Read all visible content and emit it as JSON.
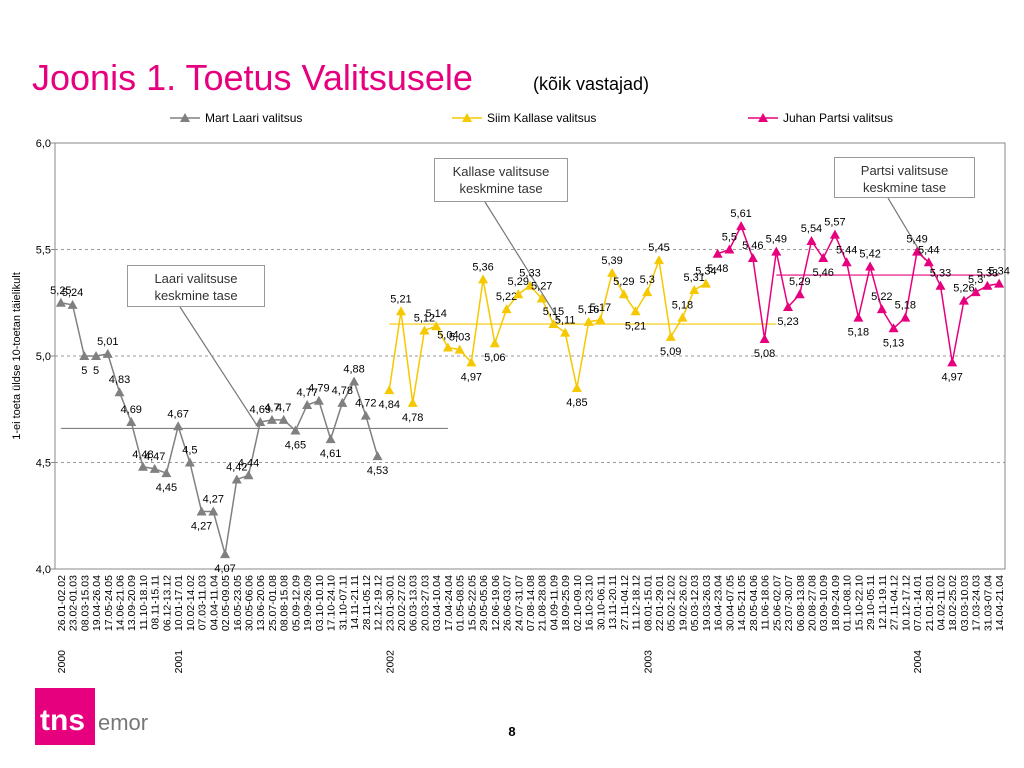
{
  "title": "Joonis 1. Toetus Valitsusele",
  "subtitle": "(kõik vastajad)",
  "page_number": "8",
  "logo": {
    "brand": "tns",
    "sub": "emor"
  },
  "chart_data": {
    "type": "line",
    "y_label": "1-ei toeta üldse  10-toetan täielikult",
    "categories": [
      "26.01-02.02",
      "23.02-01.03",
      "08.03-15.03",
      "19.04-26.04",
      "17.05-24.05",
      "14.06-21.06",
      "13.09-20.09",
      "11.10-18.10",
      "08.11-15.11",
      "06.12-13.12",
      "10.01-17.01",
      "10.02-14.02",
      "07.03-11.03",
      "04.04-11.04",
      "02.05-09.05",
      "16.05-23.05",
      "30.05-06.06",
      "13.06-20.06",
      "25.07-01.08",
      "08.08-15.08",
      "05.09-12.09",
      "19.09-26.09",
      "03.10-10.10",
      "17.10-24.10",
      "31.10-07.11",
      "14.11-21.11",
      "28.11-05.12",
      "12.12-19.12",
      "23.01-30.01",
      "20.02-27.02",
      "06.03-13.03",
      "20.03-27.03",
      "03.04-10.04",
      "17.04-24.04",
      "01.05-08.05",
      "15.05-22.05",
      "29.05-05.06",
      "12.06-19.06",
      "26.06-03.07",
      "24.07-31.07",
      "07.08-14.08",
      "21.08-28.08",
      "04.09-11.09",
      "18.09-25.09",
      "02.10-09.10",
      "16.10-23.10",
      "30.10-06.11",
      "13.11-20.11",
      "27.11-04.12",
      "11.12-18.12",
      "08.01-15.01",
      "22.01-29.01",
      "05.02-12.02",
      "19.02-26.02",
      "05.03-12.03",
      "19.03-26.03",
      "16.04-23.04",
      "30.04-07.05",
      "14.05-21.05",
      "28.05-04.06",
      "11.06-18.06",
      "25.06-02.07",
      "23.07-30.07",
      "06.08-13.08",
      "20.08-27.08",
      "03.09-10.09",
      "18.09-24.09",
      "01.10-08.10",
      "15.10-22.10",
      "29.10-05.11",
      "12.11-19.11",
      "27.11-04.12",
      "10.12-17.12",
      "07.01-14.01",
      "21.01-28.01",
      "04.02-11.02",
      "18.02-25.02",
      "03.03-10.03",
      "17.03-24.03",
      "31.03-07.04",
      "14.04-21.04"
    ],
    "years": [
      "2000",
      null,
      null,
      null,
      null,
      null,
      null,
      null,
      null,
      null,
      "2001",
      null,
      null,
      null,
      null,
      null,
      null,
      null,
      null,
      null,
      null,
      null,
      null,
      null,
      null,
      null,
      null,
      null,
      "2002",
      null,
      null,
      null,
      null,
      null,
      null,
      null,
      null,
      null,
      null,
      null,
      null,
      null,
      null,
      null,
      null,
      null,
      null,
      null,
      null,
      null,
      "2003",
      null,
      null,
      null,
      null,
      null,
      null,
      null,
      null,
      null,
      null,
      null,
      null,
      null,
      null,
      null,
      null,
      null,
      null,
      null,
      null,
      null,
      null,
      "2004",
      null,
      null,
      null,
      null,
      null,
      null,
      null
    ],
    "ylim": [
      4.0,
      6.0
    ],
    "yticks": [
      {
        "value": 4.0,
        "label": "4,0"
      },
      {
        "value": 4.5,
        "label": "4,5"
      },
      {
        "value": 5.0,
        "label": "5,0"
      },
      {
        "value": 5.5,
        "label": "5,5"
      },
      {
        "value": 6.0,
        "label": "6,0"
      }
    ],
    "grid": true,
    "series": [
      {
        "name": "Mart Laari valitsus",
        "color": "#808080",
        "values": [
          5.25,
          5.24,
          5,
          5,
          5.01,
          4.83,
          4.69,
          4.48,
          4.47,
          4.45,
          4.67,
          4.5,
          4.27,
          4.27,
          4.07,
          4.42,
          4.44,
          4.69,
          4.7,
          4.7,
          4.65,
          4.77,
          4.79,
          4.61,
          4.78,
          4.88,
          4.72,
          4.53,
          null,
          null,
          null,
          null,
          null,
          null,
          null,
          null,
          null,
          null,
          null,
          null,
          null,
          null,
          null,
          null,
          null,
          null,
          null,
          null,
          null,
          null,
          null,
          null,
          null,
          null,
          null,
          null,
          null,
          null,
          null,
          null,
          null,
          null,
          null,
          null,
          null,
          null,
          null,
          null,
          null,
          null,
          null,
          null,
          null,
          null,
          null,
          null,
          null,
          null,
          null,
          null,
          null
        ],
        "value_labels": [
          "5,25",
          "5,24",
          "5",
          "5",
          "5,01",
          "4,83",
          "4,69",
          "4,48",
          "4,47",
          "4,45",
          "4,67",
          "4,5",
          "4,27",
          "4,27",
          "4,07",
          "4,42",
          "4,44",
          "4,69",
          "4,7",
          "4,7",
          "4,65",
          "4,77",
          "4,79",
          "4,61",
          "4,78",
          "4,88",
          "4,72",
          "4,53",
          null,
          null,
          null,
          null,
          null,
          null,
          null,
          null,
          null,
          null,
          null,
          null,
          null,
          null,
          null,
          null,
          null,
          null,
          null,
          null,
          null,
          null,
          null,
          null,
          null,
          null,
          null,
          null,
          null,
          null,
          null,
          null,
          null,
          null,
          null,
          null,
          null,
          null,
          null,
          null,
          null,
          null,
          null,
          null,
          null,
          null,
          null,
          null,
          null,
          null,
          null,
          null,
          null
        ]
      },
      {
        "name": "Siim Kallase valitsus",
        "color": "#f5c800",
        "values": [
          null,
          null,
          null,
          null,
          null,
          null,
          null,
          null,
          null,
          null,
          null,
          null,
          null,
          null,
          null,
          null,
          null,
          null,
          null,
          null,
          null,
          null,
          null,
          null,
          null,
          null,
          null,
          null,
          4.84,
          5.21,
          4.78,
          5.12,
          5.14,
          5.04,
          5.03,
          4.97,
          5.36,
          5.06,
          5.22,
          5.29,
          5.33,
          5.27,
          5.15,
          5.11,
          4.85,
          5.16,
          5.17,
          5.39,
          5.29,
          5.21,
          5.3,
          5.45,
          5.09,
          5.18,
          5.31,
          5.34,
          null,
          null,
          null,
          null,
          null,
          null,
          null,
          null,
          null,
          null,
          null,
          null,
          null,
          null,
          null,
          null,
          null,
          null,
          null,
          null,
          null,
          null,
          null,
          null,
          null
        ],
        "value_labels": [
          null,
          null,
          null,
          null,
          null,
          null,
          null,
          null,
          null,
          null,
          null,
          null,
          null,
          null,
          null,
          null,
          null,
          null,
          null,
          null,
          null,
          null,
          null,
          null,
          null,
          null,
          null,
          null,
          "4,84",
          "5,21",
          "4,78",
          "5,12",
          "5,14",
          "5,04",
          "5,03",
          "4,97",
          "5,36",
          "5,06",
          "5,22",
          "5,29",
          "5,33",
          "5,27",
          "5,15",
          "5,11",
          "4,85",
          "5,16",
          "5,17",
          "5,39",
          "5,29",
          "5,21",
          "5,3",
          "5,45",
          "5,09",
          "5,18",
          "5,31",
          "5,34",
          null,
          null,
          null,
          null,
          null,
          null,
          null,
          null,
          null,
          null,
          null,
          null,
          null,
          null,
          null,
          null,
          null,
          null,
          null,
          null,
          null,
          null,
          null,
          null,
          null
        ]
      },
      {
        "name": "Juhan Partsi valitsus",
        "color": "#e6007e",
        "values": [
          null,
          null,
          null,
          null,
          null,
          null,
          null,
          null,
          null,
          null,
          null,
          null,
          null,
          null,
          null,
          null,
          null,
          null,
          null,
          null,
          null,
          null,
          null,
          null,
          null,
          null,
          null,
          null,
          null,
          null,
          null,
          null,
          null,
          null,
          null,
          null,
          null,
          null,
          null,
          null,
          null,
          null,
          null,
          null,
          null,
          null,
          null,
          null,
          null,
          null,
          null,
          null,
          null,
          null,
          null,
          null,
          5.48,
          5.5,
          5.61,
          5.46,
          5.08,
          5.49,
          5.23,
          5.29,
          5.54,
          5.46,
          5.57,
          5.44,
          5.18,
          5.42,
          5.22,
          5.13,
          5.18,
          5.49,
          5.44,
          5.33,
          4.97,
          5.26,
          5.3,
          5.33,
          5.34
        ],
        "value_labels": [
          null,
          null,
          null,
          null,
          null,
          null,
          null,
          null,
          null,
          null,
          null,
          null,
          null,
          null,
          null,
          null,
          null,
          null,
          null,
          null,
          null,
          null,
          null,
          null,
          null,
          null,
          null,
          null,
          null,
          null,
          null,
          null,
          null,
          null,
          null,
          null,
          null,
          null,
          null,
          null,
          null,
          null,
          null,
          null,
          null,
          null,
          null,
          null,
          null,
          null,
          null,
          null,
          null,
          null,
          null,
          null,
          "5,48",
          "5,5",
          "5,61",
          "5,46",
          "5,08",
          "5,49",
          "5,23",
          "5,29",
          "5,54",
          "5,46",
          "5,57",
          "5,44",
          "5,18",
          "5,42",
          "5,22",
          "5,13",
          "5,18",
          "5,49",
          "5,44",
          "5,33",
          "4,97",
          "5,26",
          "5,3",
          "5,33",
          "5,34"
        ]
      }
    ],
    "reference_lines": [
      {
        "value": 4.66,
        "from": "26.01-02.02",
        "to": "17.04-24.04",
        "color": "#808080"
      },
      {
        "value": 5.15,
        "from": "23.01-30.01",
        "to": "25.06-02.07",
        "color": "#f5c800"
      },
      {
        "value": 5.38,
        "from": "25.06-02.07",
        "to": "14.04-21.04",
        "color": "#e6007e"
      }
    ],
    "annotations": [
      "Laari valitsuse keskmine tase",
      "Kallase valitsuse keskmine tase",
      "Partsi valitsuse keskmine tase"
    ]
  }
}
